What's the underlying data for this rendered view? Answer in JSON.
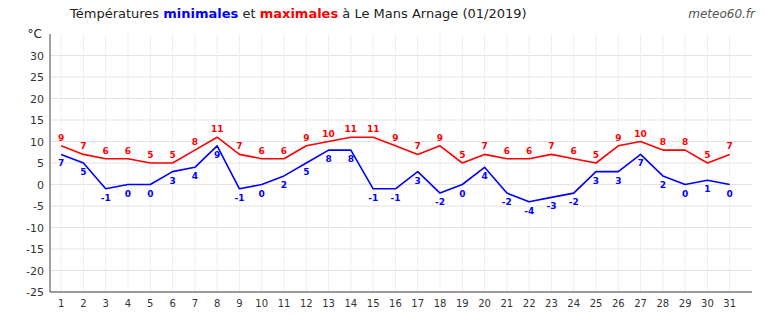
{
  "chart_data": {
    "type": "line",
    "title": "Témpératures minimales et maximales à Le Mans Arnage (01/2019)",
    "y_label": "°C",
    "annotations": [
      "meteo60.fr"
    ],
    "x": [
      1,
      2,
      3,
      4,
      5,
      6,
      7,
      8,
      9,
      10,
      11,
      12,
      13,
      14,
      15,
      16,
      17,
      18,
      19,
      20,
      21,
      22,
      23,
      24,
      25,
      26,
      27,
      28,
      29,
      30,
      31
    ],
    "series": [
      {
        "name": "maximales",
        "color": "#ff0000",
        "values": [
          9,
          7,
          6,
          6,
          5,
          5,
          8,
          11,
          7,
          6,
          6,
          9,
          10,
          11,
          11,
          9,
          7,
          9,
          5,
          7,
          6,
          6,
          7,
          6,
          5,
          9,
          10,
          8,
          8,
          5,
          7
        ]
      },
      {
        "name": "minimales",
        "color": "#0000ff",
        "values": [
          7,
          5,
          -1,
          0,
          0,
          3,
          4,
          9,
          -1,
          0,
          2,
          5,
          8,
          8,
          -1,
          -1,
          3,
          -2,
          0,
          4,
          -2,
          -4,
          -3,
          -2,
          3,
          3,
          7,
          2,
          0,
          1,
          0
        ]
      }
    ],
    "xlim": [
      0.5,
      32
    ],
    "xticks": [
      1,
      2,
      3,
      4,
      5,
      6,
      7,
      8,
      9,
      10,
      11,
      12,
      13,
      14,
      15,
      16,
      17,
      18,
      19,
      20,
      21,
      22,
      23,
      24,
      25,
      26,
      27,
      28,
      29,
      30,
      31
    ],
    "ylim": [
      -25,
      35
    ],
    "yticks": [
      -25,
      -20,
      -15,
      -10,
      -5,
      0,
      5,
      10,
      15,
      20,
      25,
      30
    ],
    "grid": true,
    "data_labels": true
  }
}
